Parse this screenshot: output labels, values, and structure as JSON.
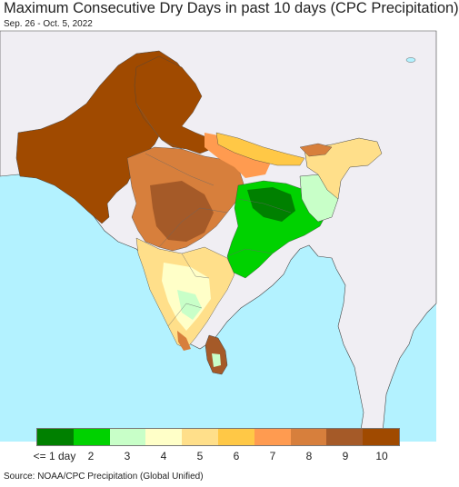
{
  "title": "Maximum Consecutive Dry Days in past 10 days (CPC Precipitation)",
  "date_range": "Sep. 26 - Oct. 5, 2022",
  "source": "Source: NOAA/CPC Precipitation (Global Unified)",
  "legend": {
    "labels": [
      "<= 1 day",
      "2",
      "3",
      "4",
      "5",
      "6",
      "7",
      "8",
      "9",
      "10"
    ],
    "colors": [
      "#008000",
      "#00d200",
      "#c8ffc8",
      "#ffffc8",
      "#ffdf8a",
      "#ffc846",
      "#ff9b50",
      "#d77f3c",
      "#a55a28",
      "#a04a00"
    ]
  },
  "map": {
    "ocean_color": "#b3f2ff",
    "outside_land_color": "#f0eef3",
    "border_color": "#444444"
  }
}
